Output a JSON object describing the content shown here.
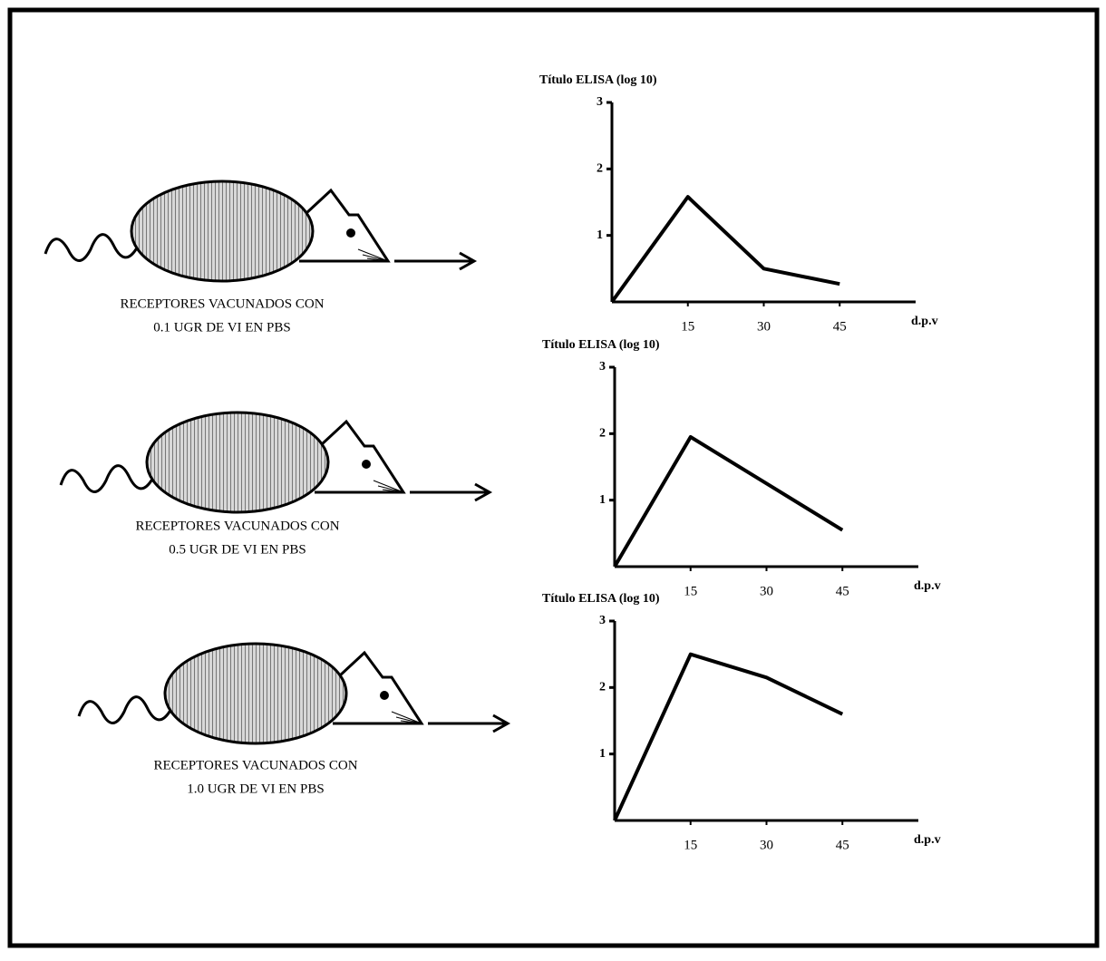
{
  "chart_data": [
    {
      "type": "line",
      "title": "Título ELISA (log 10)",
      "x_label": "d.p.v",
      "x": [
        0,
        15,
        30,
        45
      ],
      "values": [
        0,
        1.58,
        0.5,
        0.27
      ],
      "color": "#000000",
      "xlim": [
        0,
        60
      ],
      "ylim": [
        0,
        3
      ],
      "xticks": [
        15,
        30,
        45
      ],
      "yticks": [
        1,
        2,
        3
      ]
    },
    {
      "type": "line",
      "title": "Título ELISA (log 10)",
      "x_label": "d.p.v",
      "x": [
        0,
        15,
        30,
        45
      ],
      "values": [
        0,
        1.95,
        1.25,
        0.55
      ],
      "color": "#000000",
      "xlim": [
        0,
        60
      ],
      "ylim": [
        0,
        3
      ],
      "xticks": [
        15,
        30,
        45
      ],
      "yticks": [
        1,
        2,
        3
      ]
    },
    {
      "type": "line",
      "title": "Título ELISA (log 10)",
      "x_label": "d.p.v",
      "x": [
        0,
        15,
        30,
        45
      ],
      "values": [
        0,
        2.5,
        2.15,
        1.6
      ],
      "color": "#000000",
      "xlim": [
        0,
        60
      ],
      "ylim": [
        0,
        3
      ],
      "xticks": [
        15,
        30,
        45
      ],
      "yticks": [
        1,
        2,
        3
      ]
    }
  ],
  "panels": [
    {
      "label_lines": [
        "RECEPTORES VACUNADOS CON",
        "0.1 UGR DE VI EN PBS"
      ]
    },
    {
      "label_lines": [
        "RECEPTORES VACUNADOS CON",
        "0.5 UGR DE VI EN PBS"
      ]
    },
    {
      "label_lines": [
        "RECEPTORES VACUNADOS CON",
        "1.0 UGR DE VI EN PBS"
      ]
    }
  ]
}
